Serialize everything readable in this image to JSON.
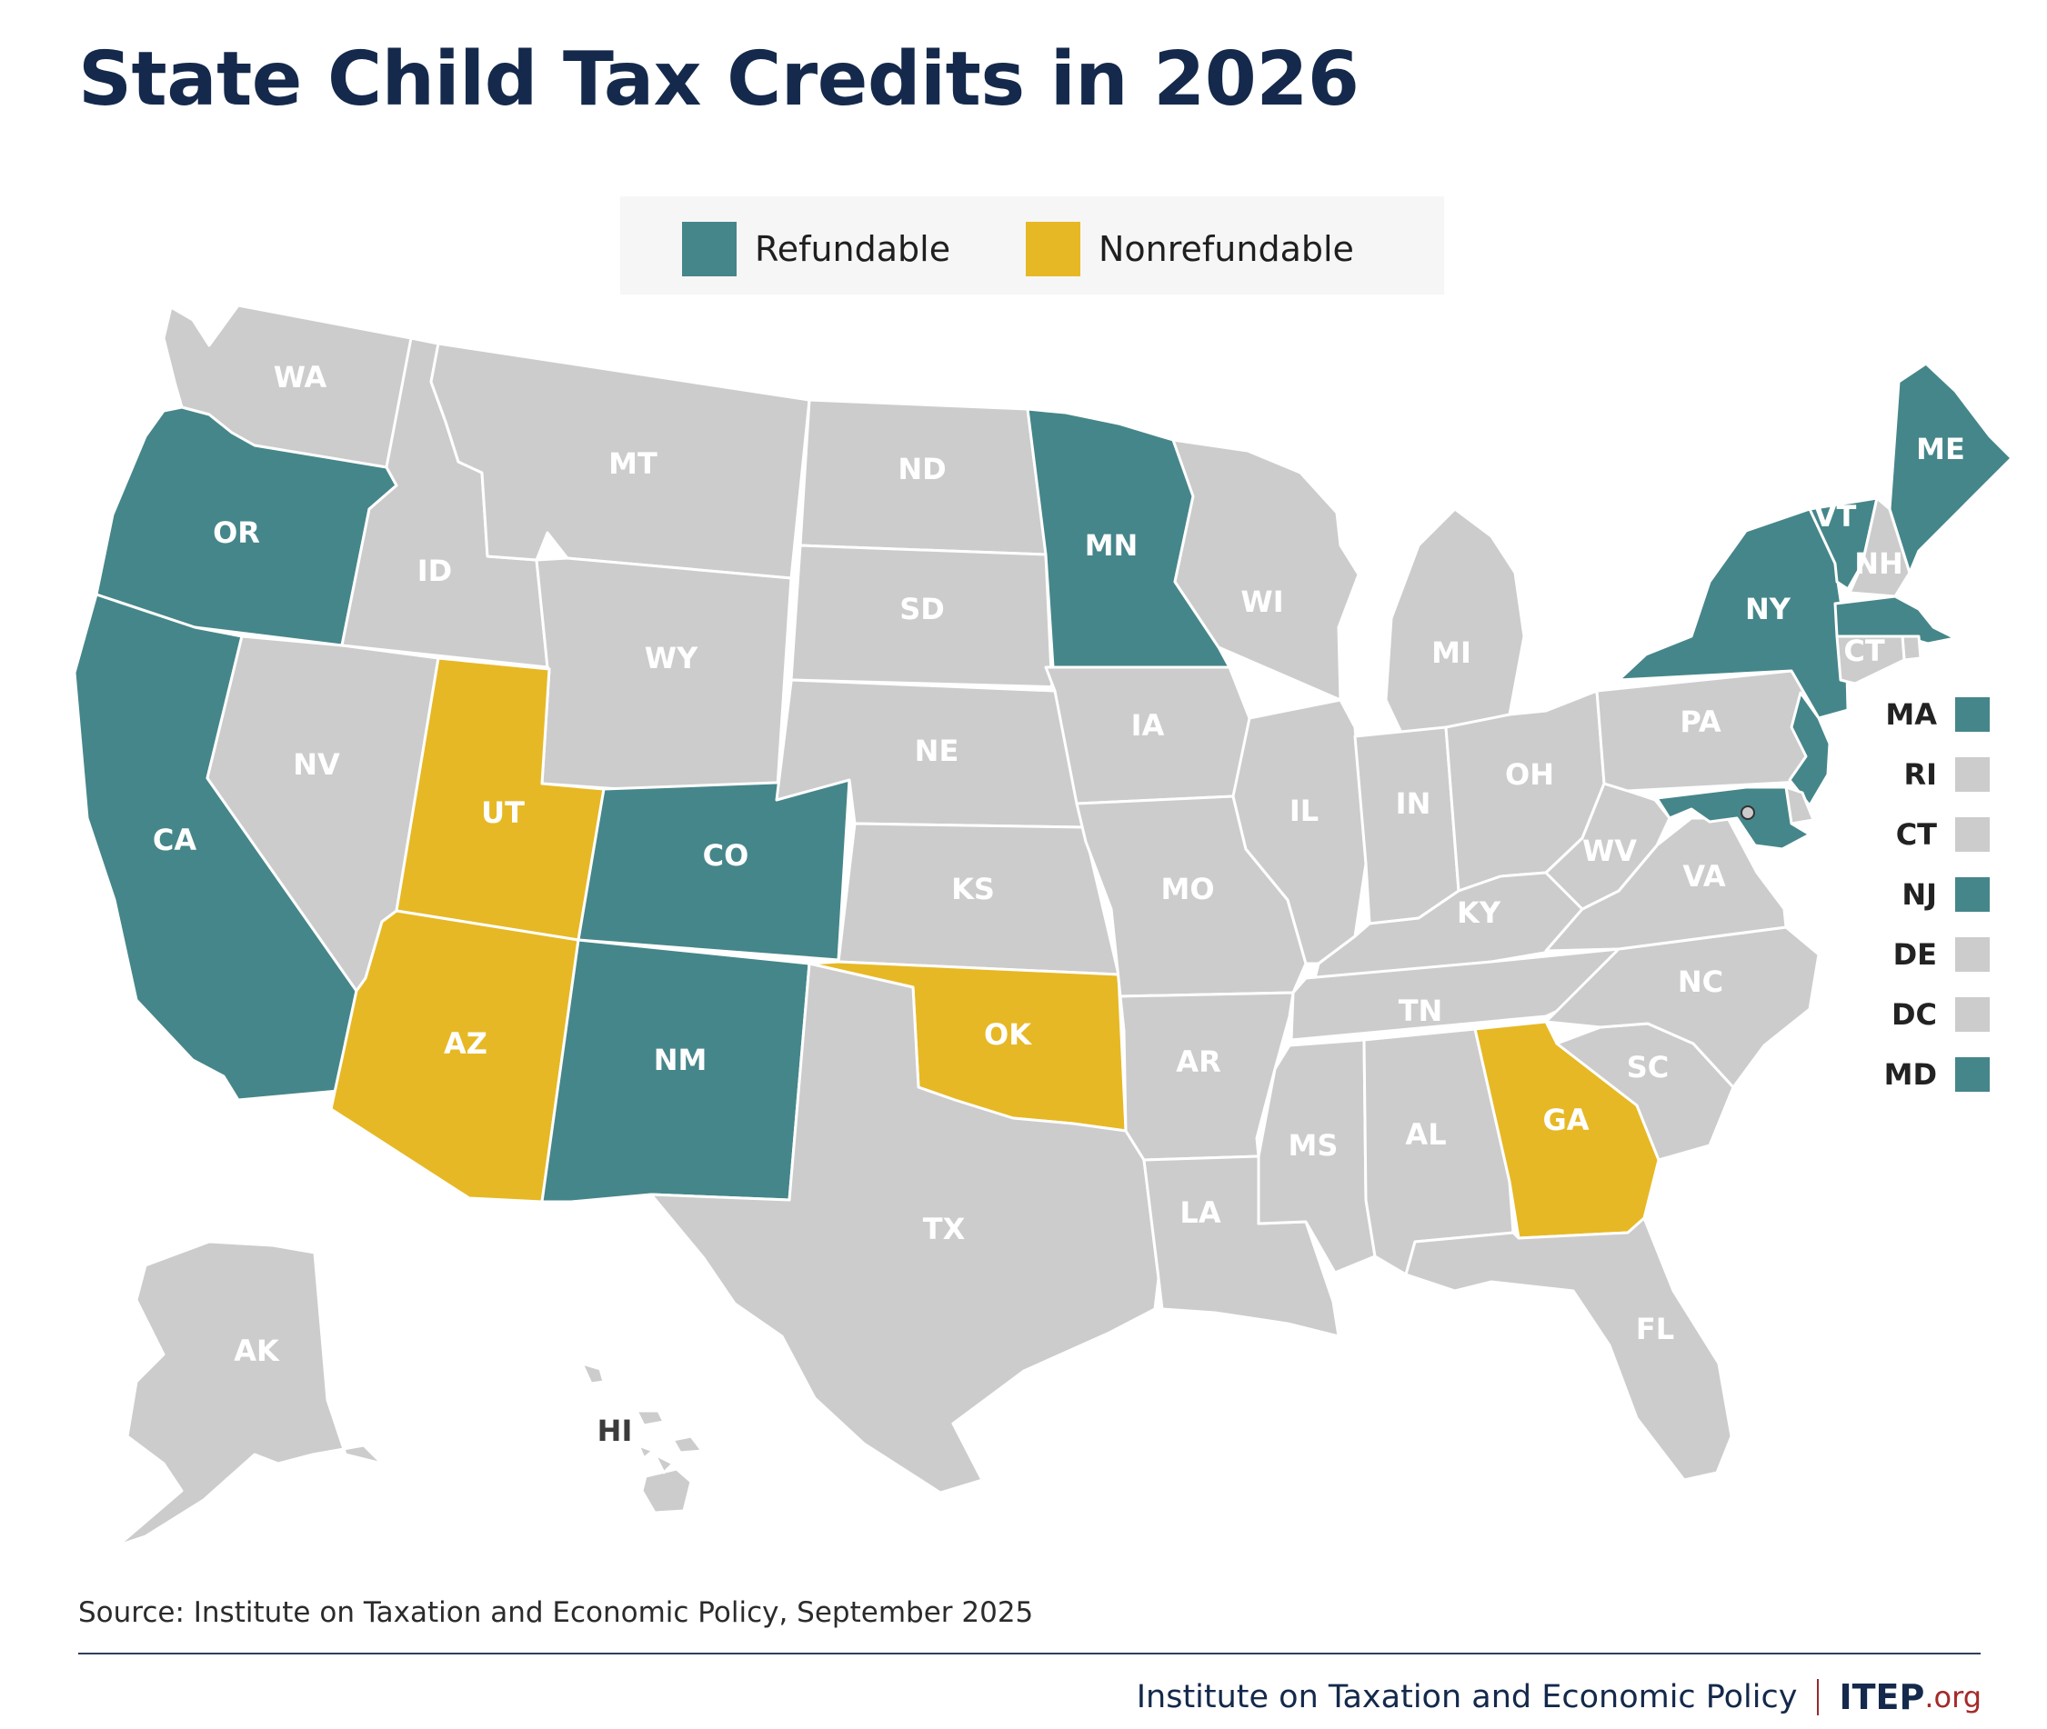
{
  "title": "State Child Tax Credits in 2026",
  "legend": [
    {
      "label": "Refundable",
      "color": "#45868a"
    },
    {
      "label": "Nonrefundable",
      "color": "#e6b825"
    }
  ],
  "colors": {
    "refundable": "#45868a",
    "nonrefundable": "#e6b825",
    "none": "#cccccc",
    "border": "#ffffff"
  },
  "states": {
    "WA": "none",
    "OR": "refundable",
    "CA": "refundable",
    "ID": "none",
    "NV": "none",
    "MT": "none",
    "WY": "none",
    "UT": "nonrefundable",
    "AZ": "nonrefundable",
    "CO": "refundable",
    "NM": "refundable",
    "ND": "none",
    "SD": "none",
    "NE": "none",
    "KS": "none",
    "OK": "nonrefundable",
    "TX": "none",
    "MN": "refundable",
    "IA": "none",
    "MO": "none",
    "AR": "none",
    "LA": "none",
    "WI": "none",
    "IL": "none",
    "MI": "none",
    "IN": "none",
    "OH": "none",
    "KY": "none",
    "TN": "none",
    "MS": "none",
    "AL": "none",
    "GA": "nonrefundable",
    "FL": "none",
    "SC": "none",
    "NC": "none",
    "VA": "none",
    "WV": "none",
    "PA": "none",
    "NY": "refundable",
    "VT": "refundable",
    "NH": "none",
    "ME": "refundable",
    "MA": "refundable",
    "RI": "none",
    "CT": "none",
    "NJ": "refundable",
    "DE": "none",
    "MD": "refundable",
    "DC": "none",
    "AK": "none",
    "HI": "none"
  },
  "small_states": [
    {
      "code": "MA",
      "status": "refundable"
    },
    {
      "code": "RI",
      "status": "none"
    },
    {
      "code": "CT",
      "status": "none"
    },
    {
      "code": "NJ",
      "status": "refundable"
    },
    {
      "code": "DE",
      "status": "none"
    },
    {
      "code": "DC",
      "status": "none"
    },
    {
      "code": "MD",
      "status": "refundable"
    }
  ],
  "source": "Source: Institute on Taxation and Economic Policy, September 2025",
  "footer": {
    "org": "Institute on Taxation and Economic Policy",
    "brand": "ITEP",
    "ext": ".org"
  }
}
